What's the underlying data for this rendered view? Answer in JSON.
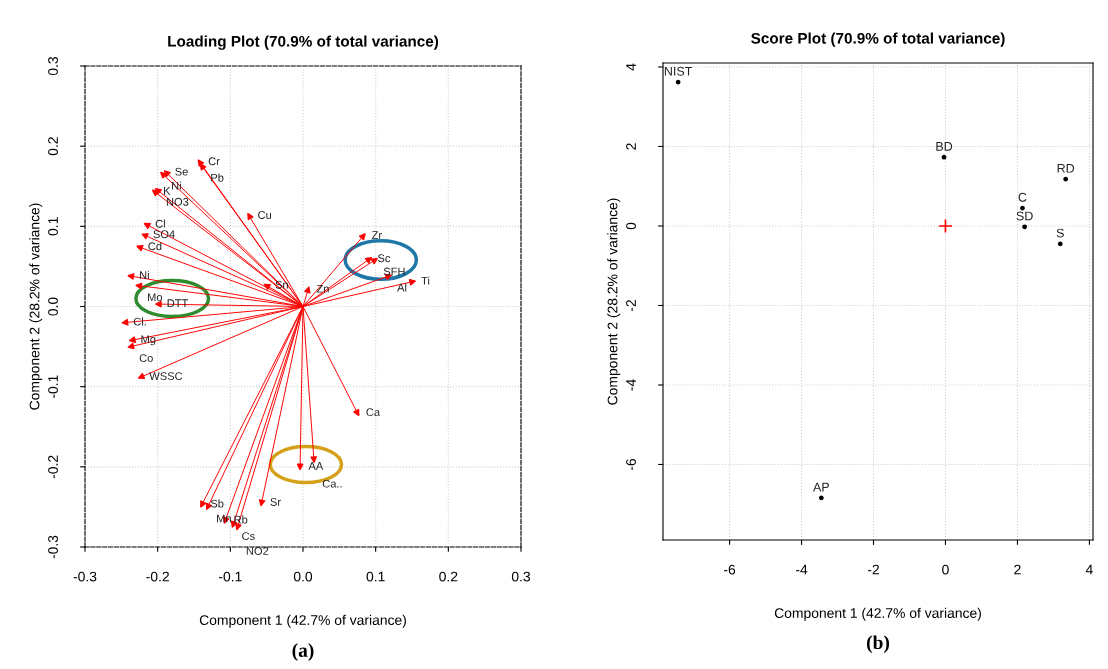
{
  "chart_data": [
    {
      "type": "scatter",
      "title": "Loading Plot (70.9% of total variance)",
      "xlabel": "Component 1 (42.7% of variance)",
      "ylabel": "Component 2 (28.2% of variance)",
      "xlim": [
        -0.3,
        0.3
      ],
      "ylim": [
        -0.3,
        0.3
      ],
      "xticks": [
        -0.3,
        -0.2,
        -0.1,
        {
          "value": 0,
          "label": "0.0"
        },
        0.1,
        0.2,
        0.3
      ],
      "yticks": [
        -0.3,
        -0.2,
        -0.1,
        {
          "value": 0,
          "label": "0.0"
        },
        0.1,
        0.2,
        0.3
      ],
      "grid": true,
      "marker": "triangle",
      "line_style": "dashed",
      "series": [
        {
          "color": "#ff0000",
          "x": [
            -0.142,
            -0.139,
            -0.188,
            -0.193,
            -0.2,
            -0.204,
            -0.215,
            -0.218,
            -0.225,
            -0.237,
            -0.226,
            -0.199,
            -0.245,
            -0.235,
            -0.237,
            -0.223,
            -0.074,
            -0.05,
            0.007,
            0.083,
            0.091,
            0.099,
            0.118,
            0.151,
            0.075,
            -0.004,
            0.015,
            -0.057,
            -0.139,
            -0.131,
            -0.107,
            -0.096,
            -0.09
          ],
          "values": [
            0.18,
            0.175,
            0.167,
            0.165,
            0.145,
            0.143,
            0.102,
            0.089,
            0.074,
            0.038,
            0.026,
            0.003,
            -0.02,
            -0.042,
            -0.05,
            -0.088,
            0.113,
            0.026,
            0.021,
            0.088,
            0.059,
            0.058,
            0.038,
            0.031,
            -0.133,
            -0.2,
            -0.191,
            -0.245,
            -0.247,
            -0.25,
            -0.267,
            -0.272,
            -0.275
          ]
        }
      ],
      "annotations": [
        {
          "text": "Cr",
          "x": -0.142,
          "y": 0.18
        },
        {
          "text": "Pb",
          "x": -0.139,
          "y": 0.175
        },
        {
          "text": "Se",
          "x": -0.188,
          "y": 0.167
        },
        {
          "text": "Ni",
          "x": -0.193,
          "y": 0.165
        },
        {
          "text": "NO3",
          "x": -0.2,
          "y": 0.145
        },
        {
          "text": "K",
          "x": -0.204,
          "y": 0.143
        },
        {
          "text": "Cl",
          "x": -0.215,
          "y": 0.102
        },
        {
          "text": "SO4",
          "x": -0.218,
          "y": 0.089
        },
        {
          "text": "Cd",
          "x": -0.225,
          "y": 0.074
        },
        {
          "text": "Ni",
          "x": -0.237,
          "y": 0.038
        },
        {
          "text": "Mo",
          "x": -0.226,
          "y": 0.026
        },
        {
          "text": "DTT",
          "x": -0.199,
          "y": 0.003
        },
        {
          "text": "Cl.",
          "x": -0.245,
          "y": -0.02
        },
        {
          "text": "Mg",
          "x": -0.235,
          "y": -0.042
        },
        {
          "text": "Co",
          "x": -0.237,
          "y": -0.05
        },
        {
          "text": "WSSC",
          "x": -0.223,
          "y": -0.088
        },
        {
          "text": "Cu",
          "x": -0.074,
          "y": 0.113
        },
        {
          "text": "Sn",
          "x": -0.05,
          "y": 0.026
        },
        {
          "text": "Zn",
          "x": 0.007,
          "y": 0.021
        },
        {
          "text": "Zr",
          "x": 0.083,
          "y": 0.088
        },
        {
          "text": "Sc",
          "x": 0.091,
          "y": 0.059
        },
        {
          "text": "SFH",
          "x": 0.099,
          "y": 0.058
        },
        {
          "text": "Al",
          "x": 0.118,
          "y": 0.038
        },
        {
          "text": "Ti",
          "x": 0.151,
          "y": 0.031
        },
        {
          "text": "Ca",
          "x": 0.075,
          "y": -0.133
        },
        {
          "text": "AA",
          "x": -0.004,
          "y": -0.2
        },
        {
          "text": "Ca..",
          "x": 0.015,
          "y": -0.191
        },
        {
          "text": "Sr",
          "x": -0.057,
          "y": -0.245
        },
        {
          "text": "Sb",
          "x": -0.139,
          "y": -0.247
        },
        {
          "text": "Mn",
          "x": -0.131,
          "y": -0.25
        },
        {
          "text": "Rb",
          "x": -0.107,
          "y": -0.267
        },
        {
          "text": "Cs",
          "x": -0.096,
          "y": -0.272
        },
        {
          "text": "NO2",
          "x": -0.09,
          "y": -0.275
        },
        "(a)"
      ]
    },
    {
      "type": "scatter",
      "title": "Score Plot (70.9% of total variance)",
      "xlabel": "Component 1 (42.7% of variance)",
      "ylabel": "Component 2 (28.2% of variance)",
      "xlim": [
        -7.85,
        4.1
      ],
      "ylim": [
        -7.9,
        4.1
      ],
      "xticks": [
        -6,
        -4,
        -2,
        0,
        2,
        4
      ],
      "yticks": [
        -6,
        -4,
        -2,
        0,
        2,
        4
      ],
      "grid": true,
      "marker": "circle",
      "line_style": "solid",
      "series": [
        {
          "color": "#000000",
          "x": [
            -7.43,
            -0.04,
            3.34,
            2.14,
            2.2,
            3.19,
            -3.45
          ],
          "values": [
            3.62,
            1.73,
            1.18,
            0.45,
            -0.02,
            -0.45,
            -6.84
          ]
        },
        {
          "color": "#ff0000",
          "marker": "cross",
          "x": [
            0
          ],
          "values": [
            0
          ]
        }
      ],
      "annotations": [
        {
          "text": "NIST",
          "x": -7.43,
          "y": 3.62
        },
        {
          "text": "BD",
          "x": -0.04,
          "y": 1.73
        },
        {
          "text": "RD",
          "x": 3.34,
          "y": 1.18
        },
        {
          "text": "C",
          "x": 2.14,
          "y": 0.45
        },
        {
          "text": "SD",
          "x": 2.2,
          "y": -0.02
        },
        {
          "text": "S",
          "x": 3.19,
          "y": -0.45
        },
        {
          "text": "AP",
          "x": -3.45,
          "y": -6.84
        },
        "(b)"
      ]
    }
  ]
}
